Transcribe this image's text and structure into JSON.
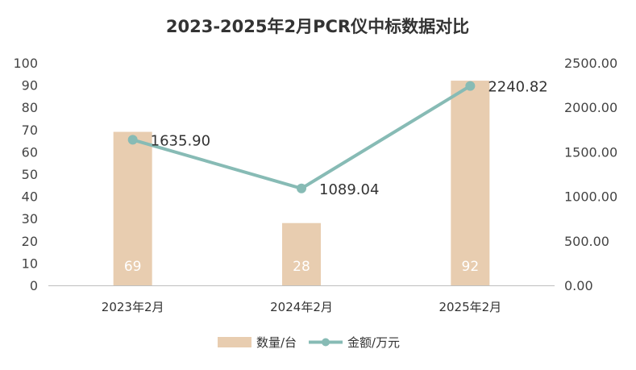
{
  "chart_data": {
    "type": "bar",
    "title": "2023-2025年2月PCR仪中标数据对比",
    "categories": [
      "2023年2月",
      "2024年2月",
      "2025年2月"
    ],
    "series": [
      {
        "name": "数量/台",
        "type": "bar",
        "axis": "left",
        "values": [
          69,
          28,
          92
        ],
        "labels": [
          "69",
          "28",
          "92"
        ],
        "color": "#e8cdb0"
      },
      {
        "name": "金额/万元",
        "type": "line",
        "axis": "right",
        "values": [
          1635.9,
          1089.04,
          2240.82
        ],
        "labels": [
          "1635.90",
          "1089.04",
          "2240.82"
        ],
        "color": "#87bbb5"
      }
    ],
    "y_left": {
      "min": 0,
      "max": 100,
      "ticks": [
        "0",
        "10",
        "20",
        "30",
        "40",
        "50",
        "60",
        "70",
        "80",
        "90",
        "100"
      ]
    },
    "y_right": {
      "min": 0,
      "max": 2500,
      "ticks": [
        "0.00",
        "500.00",
        "1000.00",
        "1500.00",
        "2000.00",
        "2500.00"
      ]
    },
    "grid": false,
    "legend_position": "bottom-center"
  }
}
